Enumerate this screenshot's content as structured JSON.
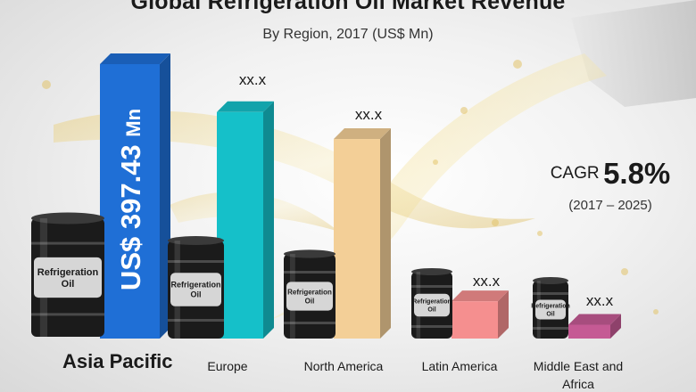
{
  "header": {
    "title": "Global Refrigeration Oil Market Revenue",
    "subtitle": "By Region, 2017 (US$ Mn)"
  },
  "cagr": {
    "label": "CAGR",
    "value": "5.8%",
    "period": "(2017 – 2025)"
  },
  "barrel_label": "Refrigeration Oil",
  "chart_data": {
    "type": "bar",
    "title": "Global Refrigeration Oil Market Revenue",
    "subtitle": "By Region, 2017 (US$ Mn)",
    "xlabel": "",
    "ylabel": "",
    "grid": false,
    "categories": [
      "Asia Pacific",
      "Europe",
      "North America",
      "Latin America",
      "Middle East and Africa"
    ],
    "value_labels": [
      "US$ 397.43 Mn",
      "xx.x",
      "xx.x",
      "xx.x",
      "xx.x"
    ],
    "values": [
      397.43,
      328,
      289,
      54,
      20
    ],
    "colors": [
      "#1f6fd6",
      "#15c0c9",
      "#f3cf97",
      "#f58f8f",
      "#c55a94"
    ]
  }
}
